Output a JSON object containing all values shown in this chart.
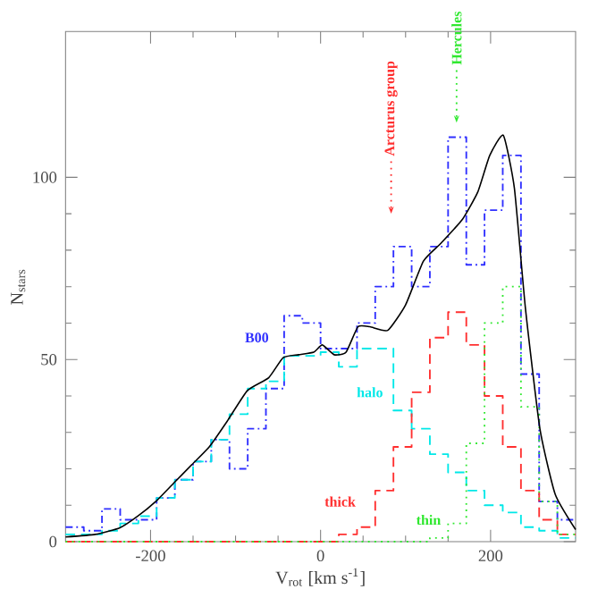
{
  "chart_data": {
    "type": "histogram",
    "xlabel": "V$_{rot}$ [km s$^{-1}$]",
    "ylabel": "N$_{stars}$",
    "xlim": [
      -300,
      300
    ],
    "ylim": [
      0,
      140
    ],
    "xticks": [
      -200,
      0,
      200
    ],
    "yticks": [
      0,
      50,
      100
    ],
    "bins": [
      -300,
      -278.57,
      -257.14,
      -235.71,
      -214.29,
      -192.86,
      -171.43,
      -150,
      -128.57,
      -107.14,
      -85.71,
      -64.29,
      -42.86,
      -21.43,
      0,
      21.43,
      42.86,
      64.29,
      85.71,
      107.14,
      128.57,
      150,
      171.43,
      192.86,
      214.29,
      235.71,
      257.14,
      278.57,
      300
    ],
    "series": [
      {
        "name": "B00",
        "color": "#3030ff",
        "line_style": "dashdot",
        "values": [
          4,
          3,
          9,
          6,
          6,
          12,
          17,
          22,
          28,
          20,
          31,
          42,
          62,
          60,
          53,
          53,
          60,
          70,
          81,
          70,
          81,
          111,
          76,
          91,
          106,
          46,
          11,
          6
        ]
      },
      {
        "name": "halo",
        "color": "#00e8e8",
        "line_style": "dashed",
        "values": [
          2,
          2,
          3,
          5,
          7,
          12,
          17,
          22,
          28,
          35,
          42,
          44,
          51,
          51,
          52,
          48,
          53,
          53,
          36,
          31,
          24,
          19,
          14,
          10,
          8,
          4,
          3,
          1
        ]
      },
      {
        "name": "thick",
        "color": "#ff3030",
        "line_style": "dashed",
        "values": [
          0,
          0,
          0,
          0,
          0,
          0,
          0,
          0,
          0,
          0,
          0,
          0,
          0,
          0,
          0,
          2,
          4,
          14,
          26,
          41,
          56,
          63,
          54,
          40,
          26,
          14,
          6,
          2
        ]
      },
      {
        "name": "thin",
        "color": "#30e830",
        "line_style": "dotted",
        "values": [
          0,
          0,
          0,
          0,
          0,
          0,
          0,
          0,
          0,
          0,
          0,
          0,
          0,
          0,
          0,
          0,
          0,
          0,
          0,
          0,
          1,
          5,
          27,
          60,
          70,
          37,
          11,
          2
        ]
      },
      {
        "type": "line",
        "color": "#000000",
        "line_style": "solid",
        "x": [
          -300,
          -265,
          -236,
          -215,
          -194,
          -173,
          -152,
          -131,
          -110,
          -86,
          -61,
          -44,
          -26,
          -8,
          2,
          16,
          30,
          44,
          58,
          79,
          100,
          121,
          142,
          167,
          185,
          199,
          215,
          228,
          241,
          258,
          276,
          300
        ],
        "values": [
          1.3,
          2,
          3.8,
          7,
          11,
          16,
          21,
          26,
          33,
          41.5,
          45,
          50.5,
          51.3,
          52,
          54,
          51.3,
          52,
          59,
          59,
          58,
          65,
          77,
          82,
          88.5,
          96,
          106,
          111.5,
          97,
          64,
          31,
          13,
          3.3
        ]
      }
    ],
    "annotations": [
      {
        "text": "Arcturus group",
        "x": 83,
        "y": 90
      },
      {
        "text": "Hercules",
        "x": 160,
        "y": 115
      }
    ]
  }
}
